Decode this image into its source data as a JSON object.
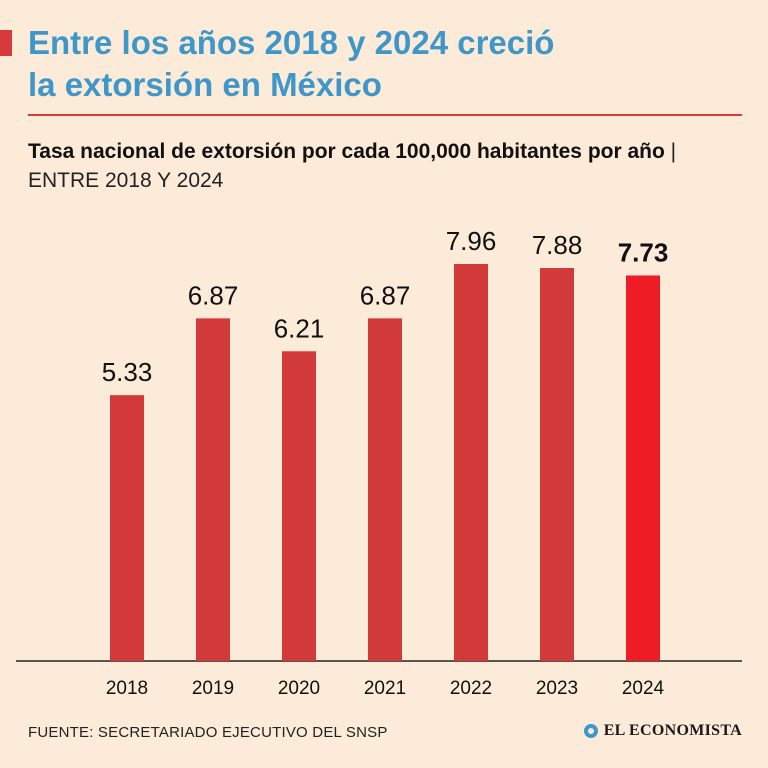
{
  "headline": {
    "line1": "Entre los años 2018 y 2024 creció",
    "line2": "la extorsión en México"
  },
  "subtitle": {
    "bold": "Tasa nacional de extorsión por cada 100,000 habitantes por año",
    "separator": "|",
    "light": "ENTRE 2018 Y 2024"
  },
  "chart_data": {
    "type": "bar",
    "categories": [
      "2018",
      "2019",
      "2020",
      "2021",
      "2022",
      "2023",
      "2024"
    ],
    "values": [
      5.33,
      6.87,
      6.21,
      6.87,
      7.96,
      7.88,
      7.73
    ],
    "value_labels": [
      "5.33",
      "6.87",
      "6.21",
      "6.87",
      "7.96",
      "7.88",
      "7.73"
    ],
    "title": "Tasa nacional de extorsión por cada 100,000 habitantes por año",
    "ylim": [
      0,
      7.96
    ],
    "grid": false,
    "bar_color": "#d13a38",
    "highlight_color": "#ee1c25",
    "highlight_index": 6
  },
  "footer": {
    "source": "FUENTE: SECRETARIADO EJECUTIVO DEL SNSP",
    "brand": "EL ECONOMISTA",
    "brand_icon": "economista-logo-icon"
  },
  "colors": {
    "background": "#fdebd9",
    "headline": "#3f96c8",
    "accent": "#d63a3a"
  }
}
